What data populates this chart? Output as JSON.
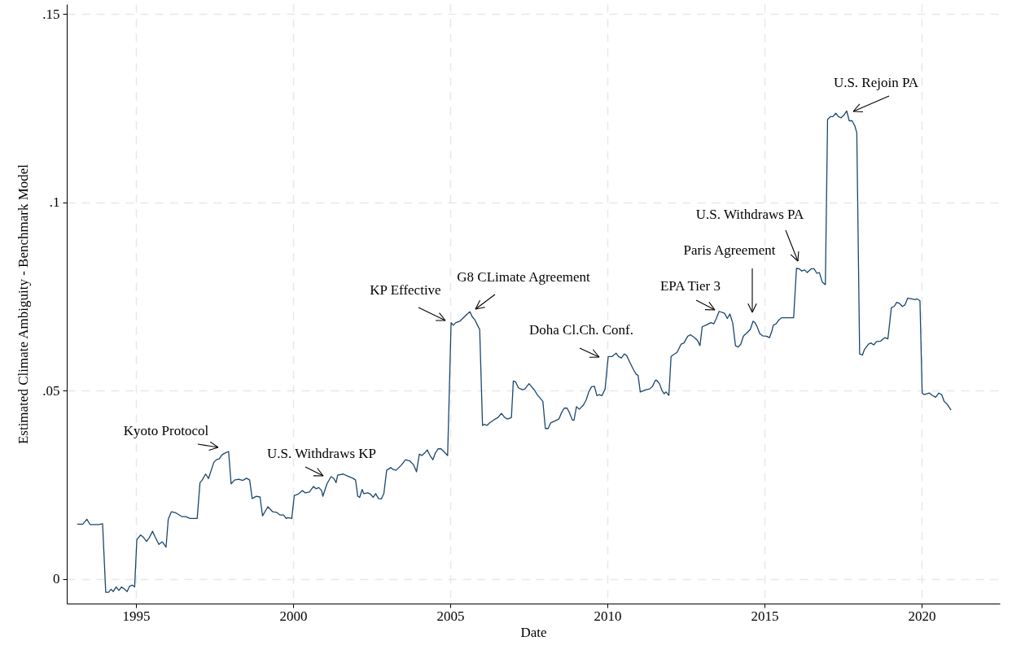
{
  "chart_data": {
    "type": "line",
    "xlabel": "Date",
    "ylabel": "Estimated Climate Ambiguity - Benchmark Model",
    "xlim": [
      1992.8,
      2022.49
    ],
    "ylim": [
      -0.0065,
      0.1527
    ],
    "xticks": [
      1995,
      2000,
      2005,
      2010,
      2015,
      2020
    ],
    "yticks": [
      {
        "value": 0,
        "label": "0"
      },
      {
        "value": 0.05,
        "label": ".05"
      },
      {
        "value": 0.1,
        "label": ".1"
      },
      {
        "value": 0.15,
        "label": ".15"
      }
    ],
    "grid": true,
    "series": [
      {
        "color": "#1a476f",
        "x": [
          1993.13,
          1993.31,
          1993.44,
          1993.54,
          1993.83,
          1993.94,
          1994.04,
          1994.13,
          1994.21,
          1994.28,
          1994.37,
          1994.46,
          1994.54,
          1994.63,
          1994.72,
          1994.8,
          1994.89,
          1994.96,
          1995.03,
          1995.15,
          1995.23,
          1995.34,
          1995.42,
          1995.53,
          1995.61,
          1995.73,
          1995.84,
          1995.96,
          1996.03,
          1996.13,
          1996.27,
          1996.46,
          1996.59,
          1996.72,
          1996.95,
          1997.04,
          1997.11,
          1997.22,
          1997.31,
          1997.48,
          1997.56,
          1997.65,
          1997.74,
          1997.84,
          1997.95,
          1998.03,
          1998.14,
          1998.27,
          1998.4,
          1998.52,
          1998.62,
          1998.7,
          1998.83,
          1998.95,
          1999.03,
          1999.2,
          1999.35,
          1999.48,
          1999.59,
          1999.7,
          1999.78,
          1999.84,
          1999.96,
          2000.04,
          2000.17,
          2000.3,
          2000.39,
          2000.52,
          2000.65,
          2000.73,
          2000.82,
          2000.91,
          2000.95,
          2001.08,
          2001.21,
          2001.3,
          2001.37,
          2001.42,
          2001.6,
          2001.73,
          2001.9,
          2001.99,
          2002.06,
          2002.12,
          2002.2,
          2002.25,
          2002.38,
          2002.46,
          2002.55,
          2002.63,
          2002.72,
          2002.81,
          2002.89,
          2002.98,
          2003.11,
          2003.19,
          2003.28,
          2003.45,
          2003.58,
          2003.71,
          2003.84,
          2003.93,
          2004.02,
          2004.1,
          2004.19,
          2004.27,
          2004.36,
          2004.45,
          2004.53,
          2004.62,
          2004.71,
          2004.84,
          2004.92,
          2005.03,
          2005.1,
          2005.18,
          2005.31,
          2005.4,
          2005.53,
          2005.63,
          2005.7,
          2005.79,
          2005.87,
          2005.94,
          2006.03,
          2006.09,
          2006.17,
          2006.26,
          2006.43,
          2006.52,
          2006.63,
          2006.74,
          2006.82,
          2006.95,
          2007.01,
          2007.08,
          2007.17,
          2007.3,
          2007.38,
          2007.51,
          2007.6,
          2007.69,
          2007.77,
          2007.95,
          2008.03,
          2008.12,
          2008.2,
          2008.38,
          2008.46,
          2008.55,
          2008.63,
          2008.72,
          2008.79,
          2008.89,
          2008.94,
          2009.02,
          2009.11,
          2009.24,
          2009.33,
          2009.41,
          2009.5,
          2009.59,
          2009.67,
          2009.74,
          2009.83,
          2009.93,
          2010.03,
          2010.15,
          2010.28,
          2010.36,
          2010.45,
          2010.54,
          2010.62,
          2010.71,
          2010.84,
          2010.92,
          2010.98,
          2011.05,
          2011.23,
          2011.35,
          2011.44,
          2011.53,
          2011.57,
          2011.66,
          2011.74,
          2011.81,
          2011.87,
          2011.96,
          2012.03,
          2012.09,
          2012.22,
          2012.35,
          2012.44,
          2012.56,
          2012.65,
          2012.78,
          2012.87,
          2012.95,
          2013.02,
          2013.13,
          2013.3,
          2013.39,
          2013.47,
          2013.56,
          2013.73,
          2013.82,
          2013.9,
          2013.99,
          2014.08,
          2014.16,
          2014.25,
          2014.33,
          2014.42,
          2014.55,
          2014.64,
          2014.7,
          2014.77,
          2014.85,
          2014.94,
          2015.07,
          2015.16,
          2015.24,
          2015.28,
          2015.37,
          2015.46,
          2015.54,
          2015.93,
          2016.02,
          2016.11,
          2016.19,
          2016.28,
          2016.36,
          2016.49,
          2016.58,
          2016.67,
          2016.75,
          2016.84,
          2016.94,
          2017.01,
          2017.1,
          2017.18,
          2017.27,
          2017.36,
          2017.44,
          2017.53,
          2017.62,
          2017.7,
          2017.79,
          2017.88,
          2017.94,
          2018.03,
          2018.12,
          2018.18,
          2018.31,
          2018.39,
          2018.48,
          2018.57,
          2018.7,
          2018.78,
          2018.84,
          2018.93,
          2019.04,
          2019.13,
          2019.21,
          2019.3,
          2019.39,
          2019.47,
          2019.56,
          2019.69,
          2019.79,
          2019.86,
          2019.95,
          2020.02,
          2020.08,
          2020.16,
          2020.25,
          2020.34,
          2020.45,
          2020.55,
          2020.64,
          2020.72,
          2020.81,
          2020.94
        ],
        "values": [
          0.0146,
          0.0146,
          0.0159,
          0.0145,
          0.0145,
          0.0147,
          -0.0035,
          -0.0035,
          -0.0027,
          -0.0033,
          -0.0021,
          -0.003,
          -0.0021,
          -0.0026,
          -0.0033,
          -0.0019,
          -0.0016,
          -0.0021,
          0.0105,
          0.0117,
          0.0112,
          0.01,
          0.0109,
          0.0127,
          0.0112,
          0.0092,
          0.0099,
          0.0085,
          0.0159,
          0.0179,
          0.0176,
          0.0166,
          0.0166,
          0.0161,
          0.0161,
          0.0256,
          0.0263,
          0.0279,
          0.0267,
          0.031,
          0.0317,
          0.0319,
          0.033,
          0.0335,
          0.0339,
          0.0253,
          0.0263,
          0.0265,
          0.0262,
          0.0268,
          0.0263,
          0.0214,
          0.022,
          0.0218,
          0.0168,
          0.0192,
          0.0179,
          0.0177,
          0.017,
          0.017,
          0.0161,
          0.0163,
          0.0161,
          0.0222,
          0.0226,
          0.0235,
          0.0229,
          0.0231,
          0.0246,
          0.024,
          0.0243,
          0.0235,
          0.022,
          0.0253,
          0.0272,
          0.0267,
          0.0256,
          0.0276,
          0.0279,
          0.0274,
          0.0268,
          0.0263,
          0.022,
          0.0217,
          0.0238,
          0.0227,
          0.0229,
          0.0226,
          0.0217,
          0.0227,
          0.0214,
          0.0213,
          0.0227,
          0.0289,
          0.0296,
          0.0291,
          0.0289,
          0.0303,
          0.0317,
          0.0314,
          0.0303,
          0.0285,
          0.0332,
          0.0328,
          0.0335,
          0.0343,
          0.0328,
          0.0317,
          0.0335,
          0.0346,
          0.0346,
          0.0335,
          0.0328,
          0.0681,
          0.0674,
          0.0681,
          0.0685,
          0.0692,
          0.0703,
          0.071,
          0.0697,
          0.0688,
          0.0674,
          0.0663,
          0.0408,
          0.0411,
          0.0408,
          0.0415,
          0.0425,
          0.0429,
          0.044,
          0.0429,
          0.0425,
          0.0429,
          0.0526,
          0.0524,
          0.0508,
          0.0503,
          0.0505,
          0.0519,
          0.051,
          0.0501,
          0.049,
          0.0472,
          0.04,
          0.04,
          0.0415,
          0.0422,
          0.0425,
          0.0443,
          0.0454,
          0.0454,
          0.0443,
          0.0422,
          0.0422,
          0.0458,
          0.0451,
          0.0462,
          0.0476,
          0.0497,
          0.0511,
          0.0512,
          0.0487,
          0.049,
          0.0487,
          0.0505,
          0.0591,
          0.0591,
          0.06,
          0.0591,
          0.0587,
          0.0598,
          0.0593,
          0.0577,
          0.0555,
          0.0544,
          0.0541,
          0.0497,
          0.0503,
          0.0505,
          0.0512,
          0.0528,
          0.0528,
          0.0519,
          0.0501,
          0.0492,
          0.0497,
          0.0488,
          0.0591,
          0.0595,
          0.0602,
          0.0624,
          0.0627,
          0.0645,
          0.0649,
          0.0641,
          0.0634,
          0.062,
          0.067,
          0.0674,
          0.0681,
          0.0678,
          0.0692,
          0.0711,
          0.0706,
          0.0692,
          0.0704,
          0.0681,
          0.062,
          0.0616,
          0.0624,
          0.0645,
          0.0652,
          0.0663,
          0.0685,
          0.0681,
          0.067,
          0.0652,
          0.0646,
          0.0645,
          0.0641,
          0.0659,
          0.0674,
          0.0678,
          0.0688,
          0.0694,
          0.0694,
          0.0825,
          0.0824,
          0.0818,
          0.0821,
          0.0814,
          0.0824,
          0.0824,
          0.0812,
          0.0814,
          0.0789,
          0.0782,
          0.1221,
          0.1228,
          0.1228,
          0.1237,
          0.1228,
          0.1225,
          0.1232,
          0.1243,
          0.1217,
          0.1217,
          0.1203,
          0.1185,
          0.0598,
          0.0595,
          0.0609,
          0.0624,
          0.0627,
          0.0622,
          0.0631,
          0.0632,
          0.0638,
          0.0641,
          0.0638,
          0.0721,
          0.0724,
          0.0735,
          0.0732,
          0.0724,
          0.0728,
          0.0746,
          0.0744,
          0.0742,
          0.0744,
          0.0739,
          0.0494,
          0.049,
          0.0492,
          0.0494,
          0.0488,
          0.0483,
          0.0494,
          0.049,
          0.0472,
          0.0465,
          0.0449
        ]
      }
    ],
    "annotations": [
      "Kyoto Protocol",
      "U.S. Withdraws KP",
      "KP Effective",
      "G8 CLimate Agreement",
      "Doha Cl.Ch. Conf.",
      "EPA Tier 3",
      "Paris Agreement",
      "U.S. Withdraws PA",
      "U.S. Rejoin PA"
    ]
  }
}
